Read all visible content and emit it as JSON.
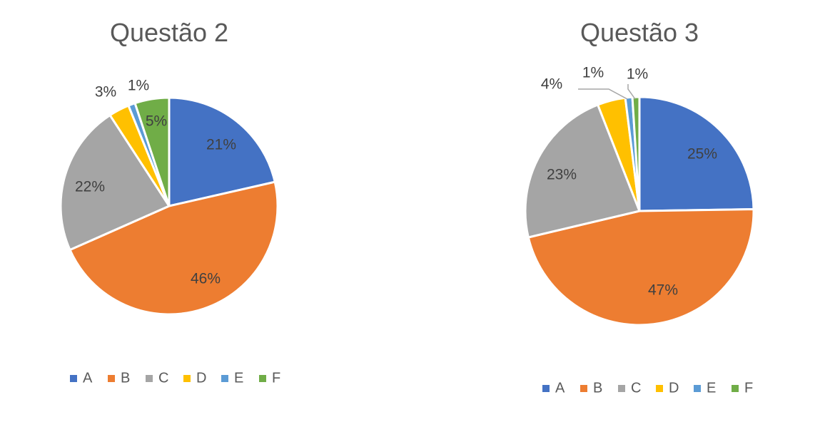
{
  "colors": {
    "A": "#4472C4",
    "B": "#ED7D31",
    "C": "#A5A5A5",
    "D": "#FFC000",
    "E": "#5B9BD5",
    "F": "#70AD47"
  },
  "chart_data": [
    {
      "type": "pie",
      "title": "Questão 2",
      "categories": [
        "A",
        "B",
        "C",
        "D",
        "E",
        "F"
      ],
      "values": [
        21,
        46,
        22,
        3,
        1,
        5
      ],
      "data_labels": [
        "21%",
        "46%",
        "22%",
        "3%",
        "1%",
        "5%"
      ],
      "legend": {
        "position": "bottom",
        "entries": [
          "A",
          "B",
          "C",
          "D",
          "E",
          "F"
        ]
      }
    },
    {
      "type": "pie",
      "title": "Questão 3",
      "categories": [
        "A",
        "B",
        "C",
        "D",
        "E",
        "F"
      ],
      "values": [
        25,
        47,
        23,
        4,
        1,
        1
      ],
      "data_labels": [
        "25%",
        "47%",
        "23%",
        "4%",
        "1%",
        "1%"
      ],
      "legend": {
        "position": "bottom",
        "entries": [
          "A",
          "B",
          "C",
          "D",
          "E",
          "F"
        ]
      }
    }
  ]
}
